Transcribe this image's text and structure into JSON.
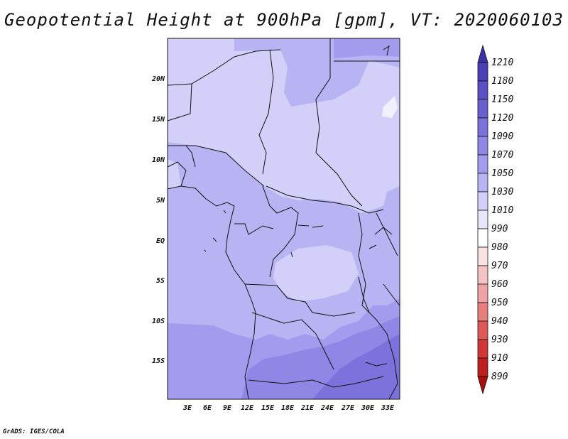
{
  "title": "Geopotential Height at 900hPa [gpm], VT: 2020060103",
  "credit": "GrADS: IGES/COLA",
  "map": {
    "lat_ticks": [
      "20N",
      "15N",
      "10N",
      "5N",
      "EQ",
      "5S",
      "10S",
      "15S"
    ],
    "lon_ticks": [
      "3E",
      "6E",
      "9E",
      "12E",
      "15E",
      "18E",
      "21E",
      "24E",
      "27E",
      "30E",
      "33E"
    ]
  },
  "colorbar": {
    "levels": [
      "1210",
      "1180",
      "1150",
      "1120",
      "1090",
      "1070",
      "1050",
      "1030",
      "1010",
      "990",
      "980",
      "970",
      "960",
      "950",
      "940",
      "930",
      "910",
      "890"
    ],
    "colors": [
      "#3b30a6",
      "#4b3fb8",
      "#5a4fc4",
      "#6a5fd0",
      "#7c72dc",
      "#8f86e6",
      "#a39cee",
      "#b8b3f3",
      "#d2cff8",
      "#e8e6fc",
      "#ffffff",
      "#fbe3e3",
      "#f6c4c4",
      "#f0a3a3",
      "#e87e7e",
      "#df5858",
      "#d23636",
      "#c01e1e",
      "#a80f0f"
    ]
  }
}
